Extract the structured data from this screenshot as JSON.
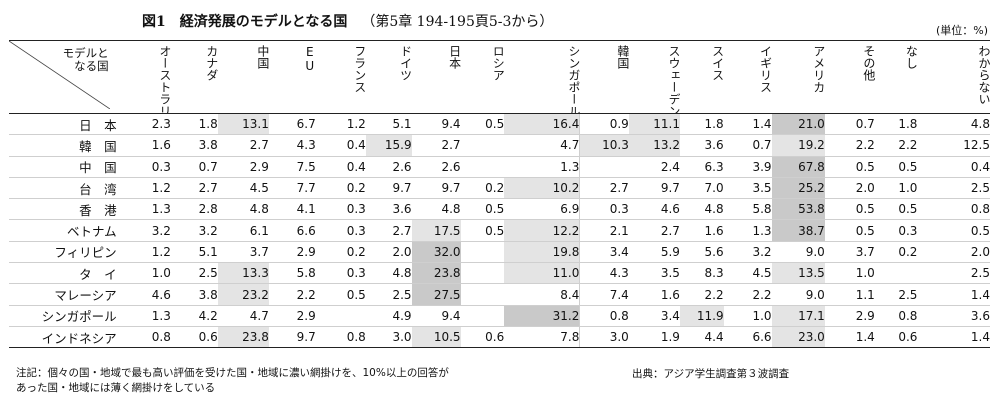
{
  "title": "図1　経済発展のモデルとなる国",
  "subtitle": "（第5章 194-195頁5-3から）",
  "unit": "(単位：%)",
  "corner_label": [
    "モデルと",
    "なる国"
  ],
  "columns": [
    "オーストラリア",
    "カナダ",
    "中国",
    "EU",
    "フランス",
    "ドイツ",
    "日本",
    "ロシア",
    "シンガポール",
    "韓国",
    "スウェーデン",
    "スイス",
    "イギリス",
    "アメリカ",
    "その他",
    "なし",
    "わからない"
  ],
  "rows": [
    {
      "label": "日　本",
      "values": [
        "2.3",
        "1.8",
        "13.1",
        "6.7",
        "1.2",
        "5.1",
        "9.4",
        "0.5",
        "16.4",
        "0.9",
        "11.1",
        "1.8",
        "1.4",
        "21.0",
        "0.7",
        "1.8",
        "4.8"
      ],
      "shade": [
        "",
        "",
        "l",
        "",
        "",
        "",
        "",
        "",
        "l",
        "",
        "l",
        "",
        "",
        "d",
        "",
        "",
        ""
      ]
    },
    {
      "label": "韓　国",
      "values": [
        "1.6",
        "3.8",
        "2.7",
        "4.3",
        "0.4",
        "15.9",
        "2.7",
        "",
        "4.7",
        "10.3",
        "13.2",
        "3.6",
        "0.7",
        "19.2",
        "2.2",
        "2.2",
        "12.5"
      ],
      "shade": [
        "",
        "",
        "",
        "",
        "",
        "l",
        "",
        "",
        "",
        "l",
        "l",
        "",
        "",
        "l",
        "",
        "",
        ""
      ]
    },
    {
      "label": "中　国",
      "values": [
        "0.3",
        "0.7",
        "2.9",
        "7.5",
        "0.4",
        "2.6",
        "2.6",
        "",
        "1.3",
        "",
        "2.4",
        "6.3",
        "3.9",
        "67.8",
        "0.5",
        "0.5",
        "0.4"
      ],
      "shade": [
        "",
        "",
        "",
        "",
        "",
        "",
        "",
        "",
        "",
        "",
        "",
        "",
        "",
        "d",
        "",
        "",
        ""
      ]
    },
    {
      "label": "台　湾",
      "values": [
        "1.2",
        "2.7",
        "4.5",
        "7.7",
        "0.2",
        "9.7",
        "9.7",
        "0.2",
        "10.2",
        "2.7",
        "9.7",
        "7.0",
        "3.5",
        "25.2",
        "2.0",
        "1.0",
        "2.5"
      ],
      "shade": [
        "",
        "",
        "",
        "",
        "",
        "",
        "",
        "",
        "l",
        "",
        "",
        "",
        "",
        "d",
        "",
        "",
        ""
      ]
    },
    {
      "label": "香　港",
      "values": [
        "1.3",
        "2.8",
        "4.8",
        "4.1",
        "0.3",
        "3.6",
        "4.8",
        "0.5",
        "6.9",
        "0.3",
        "4.6",
        "4.8",
        "5.8",
        "53.8",
        "0.5",
        "0.5",
        "0.8"
      ],
      "shade": [
        "",
        "",
        "",
        "",
        "",
        "",
        "",
        "",
        "",
        "",
        "",
        "",
        "",
        "d",
        "",
        "",
        ""
      ]
    },
    {
      "label": "ベトナム",
      "values": [
        "3.2",
        "3.2",
        "6.1",
        "6.6",
        "0.3",
        "2.7",
        "17.5",
        "0.5",
        "12.2",
        "2.1",
        "2.7",
        "1.6",
        "1.3",
        "38.7",
        "0.5",
        "0.3",
        "0.5"
      ],
      "shade": [
        "",
        "",
        "",
        "",
        "",
        "",
        "l",
        "",
        "l",
        "",
        "",
        "",
        "",
        "d",
        "",
        "",
        ""
      ]
    },
    {
      "label": "フィリピン",
      "values": [
        "1.2",
        "5.1",
        "3.7",
        "2.9",
        "0.2",
        "2.0",
        "32.0",
        "",
        "19.8",
        "3.4",
        "5.9",
        "5.6",
        "3.2",
        "9.0",
        "3.7",
        "0.2",
        "2.0"
      ],
      "shade": [
        "",
        "",
        "",
        "",
        "",
        "",
        "d",
        "",
        "l",
        "",
        "",
        "",
        "",
        "",
        "",
        "",
        ""
      ]
    },
    {
      "label": "タ　イ",
      "values": [
        "1.0",
        "2.5",
        "13.3",
        "5.8",
        "0.3",
        "4.8",
        "23.8",
        "",
        "11.0",
        "4.3",
        "3.5",
        "8.3",
        "4.5",
        "13.5",
        "1.0",
        "",
        "2.5"
      ],
      "shade": [
        "",
        "",
        "l",
        "",
        "",
        "",
        "d",
        "",
        "l",
        "",
        "",
        "",
        "",
        "l",
        "",
        "",
        ""
      ]
    },
    {
      "label": "マレーシア",
      "values": [
        "4.6",
        "3.8",
        "23.2",
        "2.2",
        "0.5",
        "2.5",
        "27.5",
        "",
        "8.4",
        "7.4",
        "1.6",
        "2.2",
        "2.2",
        "9.0",
        "1.1",
        "2.5",
        "1.4"
      ],
      "shade": [
        "",
        "",
        "l",
        "",
        "",
        "",
        "d",
        "",
        "",
        "",
        "",
        "",
        "",
        "",
        "",
        "",
        ""
      ]
    },
    {
      "label": "シンガポール",
      "values": [
        "1.3",
        "4.2",
        "4.7",
        "2.9",
        "",
        "4.9",
        "9.4",
        "",
        "31.2",
        "0.8",
        "3.4",
        "11.9",
        "1.0",
        "17.1",
        "2.9",
        "0.8",
        "3.6"
      ],
      "shade": [
        "",
        "",
        "",
        "",
        "",
        "",
        "",
        "",
        "d",
        "",
        "",
        "l",
        "",
        "l",
        "",
        "",
        ""
      ]
    },
    {
      "label": "インドネシア",
      "values": [
        "0.8",
        "0.6",
        "23.8",
        "9.7",
        "0.8",
        "3.0",
        "10.5",
        "0.6",
        "7.8",
        "3.0",
        "1.9",
        "4.4",
        "6.6",
        "23.0",
        "1.4",
        "0.6",
        "1.4"
      ],
      "shade": [
        "",
        "",
        "l",
        "",
        "",
        "",
        "l",
        "",
        "",
        "",
        "",
        "",
        "",
        "l",
        "",
        "",
        ""
      ]
    }
  ],
  "note_lines": [
    "注記：個々の国・地域で最も高い評価を受けた国・地域に濃い網掛けを、10%以上の回答が",
    "あった国・地域には薄く網掛けをしている"
  ],
  "source": "出典：アジア学生調査第３波調査",
  "colors": {
    "dark_shade": "#c9c9c9",
    "light_shade": "#e4e4e4",
    "rule": "#222222"
  }
}
